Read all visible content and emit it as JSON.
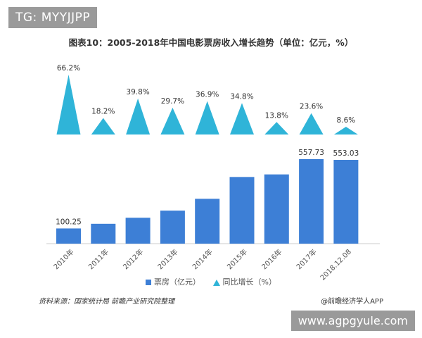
{
  "tag_label": "TG: MYYJJPP",
  "watermark_label": "www.agpgyule.com",
  "source_left": "资料来源：国家统计局   前瞻产业研究院整理",
  "source_right": "@前瞻经济学人APP",
  "colors": {
    "bar": "#3d7fd6",
    "triangle": "#2fb4d8",
    "axis": "#cccccc"
  },
  "chart_data": {
    "type": "bar",
    "title": "图表10：2005-2018年中国电影票房收入增长趋势（单位：亿元，%）",
    "categories": [
      "2010年",
      "2011年",
      "2012年",
      "2013年",
      "2014年",
      "2015年",
      "2016年",
      "2017年",
      "2018.12.08"
    ],
    "series": [
      {
        "name": "票房（亿元）",
        "values": [
          100.25,
          131,
          171,
          218,
          296,
          440,
          457,
          557.73,
          553.03
        ],
        "labels": [
          "100.25",
          "",
          "",
          "",
          "",
          "",
          "",
          "557.73",
          "553.03"
        ]
      },
      {
        "name": "同比增长（%）",
        "values": [
          66.2,
          18.2,
          39.8,
          29.7,
          36.9,
          34.8,
          13.8,
          23.6,
          8.6
        ],
        "labels": [
          "66.2%",
          "18.2%",
          "39.8%",
          "29.7%",
          "36.9%",
          "34.8%",
          "13.8%",
          "23.6%",
          "8.6%"
        ]
      }
    ],
    "legend_position": "bottom"
  }
}
